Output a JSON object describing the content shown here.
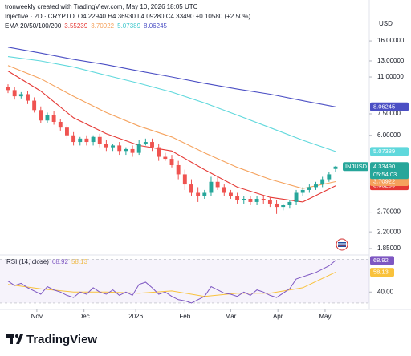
{
  "header": {
    "credit": "tronweekly created with TradingView.com, May 10, 2026 18:05 UTC",
    "currency": "USD"
  },
  "brand": "TradingView",
  "chart_data": [
    {
      "type": "candlestick",
      "symbol": "Injective · 2D · CRYPTO",
      "ohlc": "O4.22940 H4.36930 L4.09280 C4.33490 +0.10580 (+2.50%)",
      "symbol_short": "INJUSD",
      "last_label": "4.33490",
      "countdown": "05:54:03",
      "legend": "EMA 20/50/100/200",
      "up_color": "#26a69a",
      "down_color": "#ef5350",
      "log": true,
      "grid": false,
      "ylim": [
        1.73,
        19.07
      ],
      "yticks": [
        {
          "value": 16,
          "label": "16.00000"
        },
        {
          "value": 13,
          "label": "13.00000"
        },
        {
          "value": 11,
          "label": "11.00000"
        },
        {
          "value": 7.5,
          "label": "7.50000"
        },
        {
          "value": 6,
          "label": "6.00000"
        },
        {
          "value": 2.7,
          "label": "2.70000"
        },
        {
          "value": 2.2,
          "label": "2.20000"
        },
        {
          "value": 1.85,
          "label": "1.85000"
        }
      ],
      "xlim": [
        0,
        50
      ],
      "xticks": [
        {
          "value": 4.4,
          "label": "Nov"
        },
        {
          "value": 11.6,
          "label": "Dec"
        },
        {
          "value": 19.5,
          "label": "2026"
        },
        {
          "value": 27,
          "label": "Feb"
        },
        {
          "value": 34,
          "label": "Mar"
        },
        {
          "value": 41.2,
          "label": "Apr"
        },
        {
          "value": 48.4,
          "label": "May"
        }
      ],
      "open": [
        9.9,
        9.6,
        9.0,
        9.2,
        8.6,
        7.8,
        7.0,
        7.4,
        6.9,
        6.5,
        6.0,
        5.6,
        5.8,
        5.6,
        5.9,
        5.5,
        5.3,
        5.4,
        5.1,
        5.2,
        5.0,
        5.5,
        5.6,
        5.3,
        4.8,
        4.7,
        4.4,
        4.0,
        3.6,
        3.3,
        3.2,
        3.3,
        3.7,
        3.5,
        3.3,
        3.2,
        3.05,
        3.1,
        3.0,
        3.1,
        3.05,
        2.95,
        2.85,
        2.9,
        3.0,
        3.3,
        3.4,
        3.5,
        3.6,
        3.8,
        4.2294
      ],
      "high": [
        10.2,
        9.9,
        9.4,
        9.5,
        8.9,
        8.1,
        7.6,
        7.7,
        7.1,
        6.7,
        6.2,
        5.9,
        6.0,
        6.0,
        6.1,
        5.7,
        5.5,
        5.6,
        5.3,
        5.4,
        5.7,
        5.8,
        5.8,
        5.5,
        5.0,
        4.9,
        4.6,
        4.2,
        3.8,
        3.5,
        3.4,
        3.9,
        3.9,
        3.6,
        3.4,
        3.3,
        3.2,
        3.2,
        3.2,
        3.2,
        3.15,
        3.05,
        2.95,
        3.05,
        3.4,
        3.5,
        3.6,
        3.7,
        3.9,
        4.1,
        4.3693
      ],
      "low": [
        9.3,
        8.7,
        8.8,
        8.3,
        7.6,
        6.8,
        6.8,
        6.7,
        6.3,
        5.8,
        5.4,
        5.4,
        5.4,
        5.4,
        5.3,
        5.1,
        5.1,
        4.9,
        4.9,
        4.8,
        4.9,
        5.4,
        5.1,
        4.6,
        4.6,
        4.3,
        3.8,
        3.4,
        3.2,
        3.0,
        3.1,
        3.2,
        3.4,
        3.2,
        3.1,
        2.95,
        2.95,
        2.9,
        2.9,
        2.95,
        2.85,
        2.65,
        2.75,
        2.8,
        2.9,
        3.2,
        3.3,
        3.4,
        3.5,
        3.7,
        4.0928
      ],
      "close": [
        9.6,
        9.0,
        9.2,
        8.6,
        7.8,
        7.0,
        7.4,
        6.9,
        6.5,
        6.0,
        5.6,
        5.8,
        5.6,
        5.9,
        5.5,
        5.3,
        5.4,
        5.1,
        5.2,
        5.0,
        5.5,
        5.6,
        5.3,
        4.8,
        4.7,
        4.4,
        4.0,
        3.6,
        3.3,
        3.2,
        3.3,
        3.7,
        3.5,
        3.3,
        3.2,
        3.05,
        3.1,
        3.0,
        3.1,
        3.05,
        2.95,
        2.85,
        2.9,
        3.0,
        3.3,
        3.4,
        3.5,
        3.6,
        3.8,
        4.0,
        4.3349
      ],
      "series": [
        {
          "color": "#e53935",
          "x": [
            0,
            5,
            10,
            15,
            20,
            25,
            30,
            35,
            40,
            45,
            50
          ],
          "values": [
            11.7,
            9.5,
            7.2,
            6.1,
            5.4,
            5.1,
            4.2,
            3.5,
            3.15,
            3.0,
            3.55239
          ],
          "last_label": "3.55239"
        },
        {
          "color": "#f5a25d",
          "x": [
            0,
            5,
            10,
            15,
            20,
            25,
            30,
            35,
            40,
            45,
            50
          ],
          "values": [
            12.4,
            10.8,
            9.0,
            7.6,
            6.6,
            5.9,
            5.0,
            4.3,
            3.8,
            3.45,
            3.70922
          ],
          "last_label": "3.70922"
        },
        {
          "color": "#5fd8dc",
          "x": [
            0,
            5,
            10,
            15,
            20,
            25,
            30,
            35,
            40,
            45,
            50
          ],
          "values": [
            13.6,
            13.0,
            12.2,
            11.2,
            10.3,
            9.4,
            8.4,
            7.4,
            6.5,
            5.7,
            5.07389
          ],
          "last_label": "5.07389"
        },
        {
          "color": "#4b4fc4",
          "x": [
            0,
            5,
            10,
            15,
            20,
            25,
            30,
            35,
            40,
            45,
            50
          ],
          "values": [
            15.0,
            14.1,
            13.2,
            12.5,
            11.7,
            11.0,
            10.3,
            9.7,
            9.2,
            8.6,
            8.06245
          ],
          "last_label": "8.06245"
        }
      ]
    },
    {
      "type": "line",
      "title": "RSI (14, close)",
      "ylim": [
        27,
        74
      ],
      "yticks": [
        {
          "value": 40,
          "label": "40.00"
        }
      ],
      "band": [
        30,
        70
      ],
      "xlim": [
        0,
        50
      ],
      "series": [
        {
          "color": "#7e57c2",
          "values": [
            50,
            46,
            48,
            44,
            41,
            38,
            45,
            42,
            40,
            37,
            35,
            40,
            38,
            44,
            40,
            38,
            42,
            37,
            40,
            37,
            47,
            49,
            44,
            38,
            40,
            36,
            33,
            32,
            30,
            33,
            36,
            45,
            42,
            39,
            38,
            36,
            40,
            37,
            42,
            40,
            37,
            35,
            39,
            43,
            52,
            54,
            56,
            58,
            61,
            64,
            68.92
          ],
          "last_label": "68.92"
        },
        {
          "color": "#f9c23c",
          "x": [
            0,
            5,
            10,
            15,
            20,
            25,
            30,
            35,
            40,
            45,
            50
          ],
          "values": [
            47,
            43,
            40,
            40,
            39,
            41,
            36,
            39,
            39,
            44,
            58.13
          ],
          "last_label": "58.13"
        }
      ]
    }
  ]
}
